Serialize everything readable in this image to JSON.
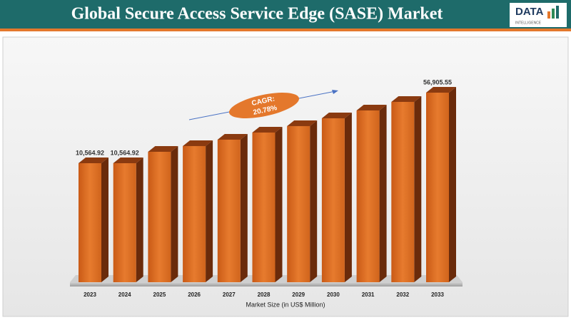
{
  "logo": {
    "text": "DATA",
    "subtitle": "INTELLIGENCE"
  },
  "chart_data": {
    "type": "bar",
    "title": "Global Secure Access Service Edge (SASE) Market",
    "categories": [
      "2023",
      "2024",
      "2025",
      "2026",
      "2027",
      "2028",
      "2029",
      "2030",
      "2031",
      "2032",
      "2033"
    ],
    "values": [
      10564.92,
      10564.92,
      18070,
      21820,
      26030,
      30710,
      34930,
      40070,
      45220,
      50840,
      56905.55
    ],
    "value_labels": [
      "10,564.92",
      "10,564.92",
      null,
      null,
      null,
      null,
      null,
      null,
      null,
      null,
      "56,905.55"
    ],
    "color": "#e4782c",
    "annotation": [
      "CAGR:",
      "20.78%"
    ],
    "x_label": "Market Size (in US$ Million)"
  }
}
